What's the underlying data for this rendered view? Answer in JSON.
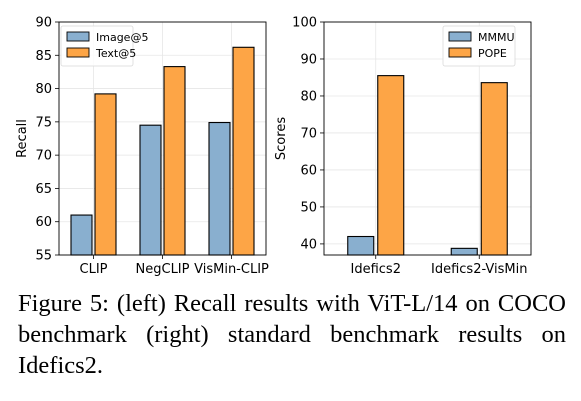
{
  "caption": "Figure 5: (left) Recall results with ViT-L/14 on COCO benchmark (right) standard benchmark results on Idefics2.",
  "chart_data": [
    {
      "type": "bar",
      "title": "",
      "xlabel": "",
      "ylabel": "Recall",
      "ylim": [
        55,
        90
      ],
      "yticks": [
        55,
        60,
        65,
        70,
        75,
        80,
        85,
        90
      ],
      "grid": true,
      "legend_position": "top-left",
      "categories": [
        "CLIP",
        "NegCLIP",
        "VisMin-CLIP"
      ],
      "series": [
        {
          "name": "Image@5",
          "color": "#89afcf",
          "values": [
            61.0,
            74.5,
            74.9
          ]
        },
        {
          "name": "Text@5",
          "color": "#fda546",
          "values": [
            79.2,
            83.3,
            86.2
          ]
        }
      ]
    },
    {
      "type": "bar",
      "title": "",
      "xlabel": "",
      "ylabel": "Scores",
      "ylim": [
        37,
        100
      ],
      "yticks": [
        40,
        50,
        60,
        70,
        80,
        90,
        100
      ],
      "grid": true,
      "legend_position": "top-right",
      "categories": [
        "Idefics2",
        "Idefics2-VisMin"
      ],
      "series": [
        {
          "name": "MMMU",
          "color": "#89afcf",
          "values": [
            42.0,
            38.8
          ]
        },
        {
          "name": "POPE",
          "color": "#fda546",
          "values": [
            85.5,
            83.6
          ]
        }
      ]
    }
  ]
}
